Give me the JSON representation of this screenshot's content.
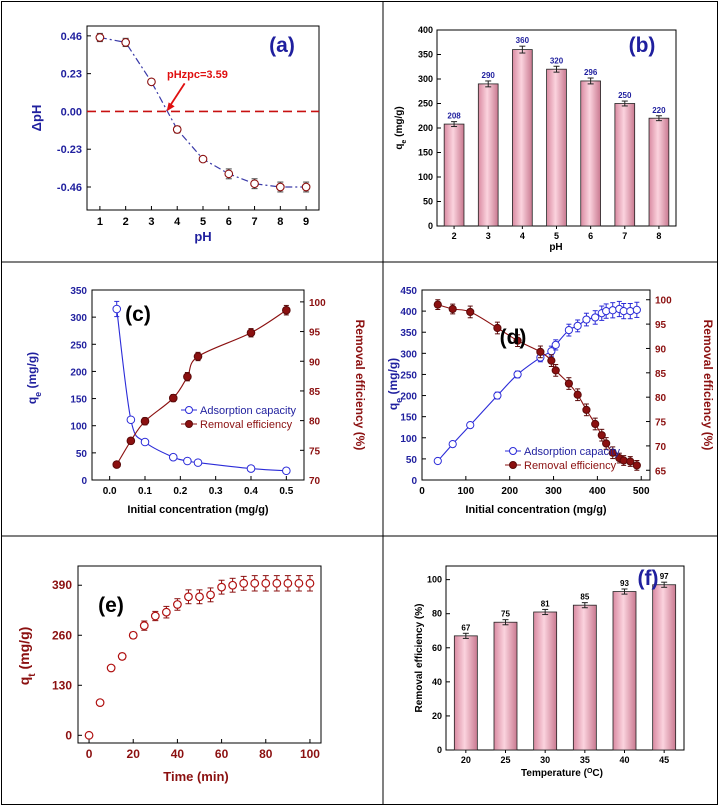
{
  "colors": {
    "frame": "#000000",
    "navy": "#1f1f9e",
    "darkred": "#8b1010",
    "red": "#e01010",
    "blue": "#2b2bd8",
    "bar_fill": "#f3b7c7",
    "bar_stroke": "#222222",
    "dashdot": "#3a3aa8"
  },
  "chart_data": [
    {
      "id": "a",
      "type": "scatter",
      "panel_label": "(a)",
      "xlabel": "pH",
      "ylabel": "ΔpH",
      "xlim": [
        0.5,
        9.5
      ],
      "ylim": [
        -0.6,
        0.52
      ],
      "xticks": [
        "1",
        "2",
        "3",
        "4",
        "5",
        "6",
        "7",
        "8",
        "9"
      ],
      "yticks": [
        "0.46",
        "0.23",
        "0.00",
        "-0.23",
        "-0.46"
      ],
      "x": [
        1,
        2,
        3,
        4,
        5,
        6,
        7,
        8,
        9
      ],
      "y": [
        0.45,
        0.42,
        0.18,
        -0.11,
        -0.29,
        -0.38,
        -0.44,
        -0.46,
        -0.46
      ],
      "error": [
        0.025,
        0.025,
        0.01,
        0.02,
        0.01,
        0.03,
        0.03,
        0.03,
        0.03
      ],
      "reference_line": 0.0,
      "annotation": "pHzpc=3.59",
      "annotation_point": [
        3.59,
        0.0
      ]
    },
    {
      "id": "b",
      "type": "bar",
      "panel_label": "(b)",
      "xlabel": "pH",
      "ylabel": "qe (mg/g)",
      "ylim": [
        0,
        400
      ],
      "yticks": [
        "0",
        "50",
        "100",
        "150",
        "200",
        "250",
        "300",
        "350",
        "400"
      ],
      "categories": [
        "2",
        "3",
        "4",
        "5",
        "6",
        "7",
        "8"
      ],
      "values": [
        208,
        290,
        360,
        320,
        296,
        250,
        220
      ],
      "labels": [
        "208",
        "290",
        "360",
        "320",
        "296",
        "250",
        "220"
      ],
      "error": [
        5,
        6,
        7,
        6,
        6,
        5,
        5
      ]
    },
    {
      "id": "c",
      "type": "line",
      "panel_label": "(c)",
      "xlabel": "Initial concentration (mg/g)",
      "ylabel": "qe (mg/g)",
      "ylabel_right": "Removal efficiency (%)",
      "xlim": [
        -0.05,
        0.55
      ],
      "ylim": [
        0,
        350
      ],
      "ylim_right": [
        70,
        102
      ],
      "xticks": [
        "0.0",
        "0.1",
        "0.2",
        "0.3",
        "0.4",
        "0.5"
      ],
      "yticks": [
        "0",
        "50",
        "100",
        "150",
        "200",
        "250",
        "300",
        "350"
      ],
      "yticks_right": [
        "70",
        "75",
        "80",
        "85",
        "90",
        "95",
        "100"
      ],
      "legend": [
        "Adsorption capacity",
        "Removal efficiency"
      ],
      "series": [
        {
          "name": "Adsorption capacity",
          "x": [
            0.02,
            0.06,
            0.1,
            0.18,
            0.22,
            0.25,
            0.4,
            0.5
          ],
          "values": [
            315,
            111,
            70,
            42,
            35,
            32,
            21,
            17
          ],
          "error": [
            14,
            4,
            4,
            3,
            3,
            3,
            3,
            3
          ],
          "axis": "left"
        },
        {
          "name": "Removal efficiency",
          "x": [
            0.02,
            0.06,
            0.1,
            0.18,
            0.22,
            0.25,
            0.4,
            0.5
          ],
          "values": [
            72.6,
            76.6,
            79.9,
            83.8,
            87.4,
            90.8,
            94.8,
            98.6
          ],
          "error": [
            0.5,
            0.5,
            0.6,
            0.6,
            0.7,
            0.7,
            0.7,
            0.8
          ],
          "axis": "right"
        }
      ]
    },
    {
      "id": "d",
      "type": "line",
      "panel_label": "(d)",
      "xlabel": "Initial concentration (mg/g)",
      "ylabel": "qe (mg/g)",
      "ylabel_right": "Removal efficiency (%)",
      "xlim": [
        0,
        520
      ],
      "ylim": [
        0,
        450
      ],
      "ylim_right": [
        63,
        102
      ],
      "xticks": [
        "0",
        "100",
        "200",
        "300",
        "400",
        "500"
      ],
      "yticks": [
        "0",
        "50",
        "100",
        "150",
        "200",
        "250",
        "300",
        "350",
        "400",
        "450"
      ],
      "yticks_right": [
        "65",
        "70",
        "75",
        "80",
        "85",
        "90",
        "95",
        "100"
      ],
      "legend": [
        "Adsorption capacity",
        "Removal efficiency"
      ],
      "series": [
        {
          "name": "Adsorption capacity",
          "x": [
            36,
            70,
            110,
            172,
            218,
            270,
            295,
            305,
            335,
            355,
            375,
            395,
            410,
            420,
            435,
            450,
            460,
            475,
            490
          ],
          "values": [
            45,
            85,
            130,
            200,
            250,
            290,
            305,
            320,
            355,
            365,
            380,
            385,
            395,
            400,
            402,
            405,
            400,
            400,
            403
          ],
          "error": [
            6,
            6,
            6,
            8,
            8,
            10,
            12,
            12,
            14,
            14,
            15,
            16,
            17,
            17,
            18,
            18,
            18,
            18,
            18
          ],
          "axis": "left"
        },
        {
          "name": "Removal efficiency",
          "x": [
            36,
            70,
            110,
            172,
            218,
            270,
            295,
            305,
            335,
            355,
            375,
            395,
            410,
            420,
            435,
            450,
            460,
            475,
            490
          ],
          "values": [
            99,
            98.1,
            97.5,
            94.2,
            91.6,
            89.3,
            87.5,
            85.5,
            82.8,
            80.5,
            77.4,
            74.5,
            72.2,
            70.5,
            68.6,
            67.5,
            67.0,
            66.8,
            66.0
          ],
          "error": [
            1.0,
            1.0,
            1.2,
            1.2,
            1.2,
            1.2,
            1.2,
            1.2,
            1.2,
            1.2,
            1.2,
            1.2,
            1.2,
            1.2,
            1.2,
            1.0,
            1.0,
            1.0,
            1.0
          ],
          "axis": "right"
        }
      ]
    },
    {
      "id": "e",
      "type": "scatter",
      "panel_label": "(e)",
      "xlabel": "Time (min)",
      "ylabel": "qt (mg/g)",
      "xlim": [
        -5,
        105
      ],
      "ylim": [
        -20,
        440
      ],
      "xticks": [
        "0",
        "20",
        "40",
        "60",
        "80",
        "100"
      ],
      "yticks": [
        "0",
        "130",
        "260",
        "390"
      ],
      "x": [
        0,
        5,
        10,
        15,
        20,
        25,
        30,
        35,
        40,
        45,
        50,
        55,
        60,
        65,
        70,
        75,
        80,
        85,
        90,
        95,
        100
      ],
      "y": [
        0,
        85,
        175,
        205,
        260,
        285,
        310,
        320,
        340,
        360,
        360,
        365,
        385,
        390,
        395,
        395,
        395,
        395,
        395,
        395,
        395
      ],
      "error": [
        0,
        5,
        5,
        8,
        8,
        12,
        12,
        15,
        15,
        18,
        18,
        18,
        18,
        18,
        18,
        20,
        20,
        20,
        20,
        20,
        20
      ]
    },
    {
      "id": "f",
      "type": "bar",
      "panel_label": "(f)",
      "xlabel": "Temperature (OC)",
      "ylabel": "Removal efficiency (%)",
      "ylim": [
        0,
        108
      ],
      "yticks": [
        "0",
        "20",
        "40",
        "60",
        "80",
        "100"
      ],
      "categories": [
        "20",
        "25",
        "30",
        "35",
        "40",
        "45"
      ],
      "values": [
        67,
        75,
        81,
        85,
        93,
        97
      ],
      "labels": [
        "67",
        "75",
        "81",
        "85",
        "93",
        "97"
      ],
      "error": [
        1.5,
        1.5,
        1.5,
        1.5,
        1.5,
        1.5
      ]
    }
  ]
}
